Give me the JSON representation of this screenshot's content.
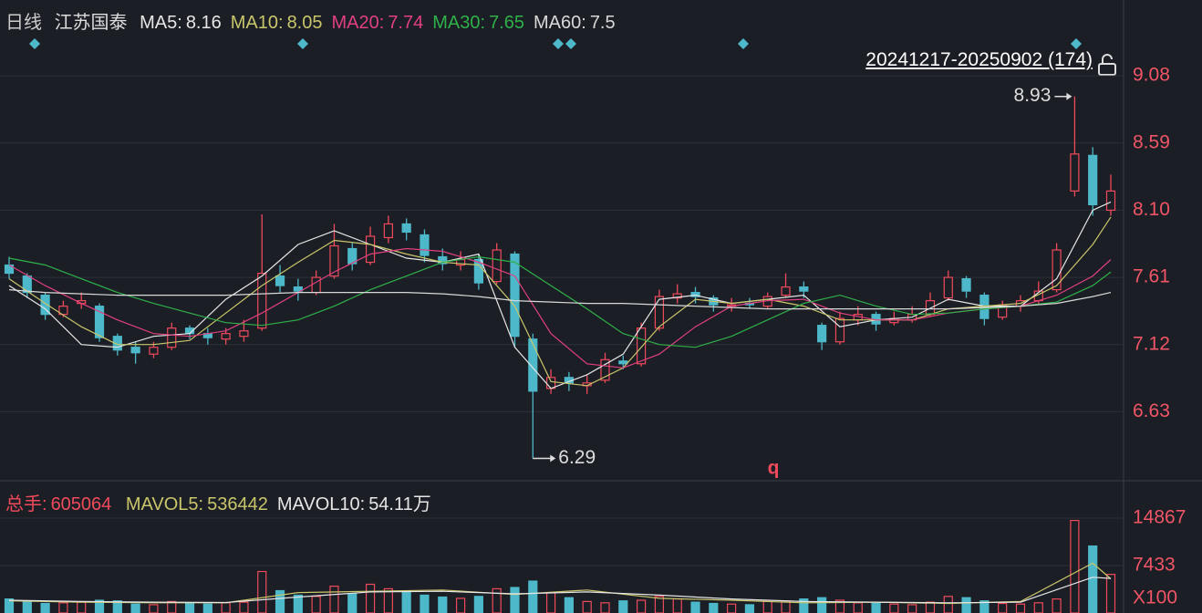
{
  "header": {
    "period": "日线",
    "name": "江苏国泰",
    "range_label": "20241217-20250902 (174)",
    "signal_label": "q"
  },
  "chart_data": [
    {
      "type": "candlestick",
      "up_color": "#ef4a5c",
      "down_color": "#4cb8c9",
      "grid": true,
      "ylim": [
        6.14,
        9.6
      ],
      "yticks": [
        9.08,
        8.59,
        {
          "value": 8.1,
          "label": "8.10"
        },
        7.61,
        7.12,
        6.63
      ],
      "high_marker": 8.93,
      "low_marker": 6.29,
      "ohlc": [
        [
          7.7,
          7.76,
          7.6,
          7.64
        ],
        [
          7.62,
          7.64,
          7.46,
          7.5
        ],
        [
          7.48,
          7.5,
          7.3,
          7.34
        ],
        [
          7.34,
          7.44,
          7.32,
          7.4
        ],
        [
          7.42,
          7.5,
          7.38,
          7.44
        ],
        [
          7.4,
          7.42,
          7.14,
          7.17
        ],
        [
          7.18,
          7.2,
          7.04,
          7.08
        ],
        [
          7.1,
          7.14,
          6.98,
          7.06
        ],
        [
          7.05,
          7.14,
          7.02,
          7.1
        ],
        [
          7.1,
          7.28,
          7.08,
          7.24
        ],
        [
          7.24,
          7.26,
          7.16,
          7.2
        ],
        [
          7.2,
          7.24,
          7.12,
          7.17
        ],
        [
          7.16,
          7.24,
          7.12,
          7.2
        ],
        [
          7.18,
          7.3,
          7.14,
          7.22
        ],
        [
          7.24,
          8.07,
          7.22,
          7.64
        ],
        [
          7.62,
          7.7,
          7.5,
          7.55
        ],
        [
          7.54,
          7.6,
          7.44,
          7.51
        ],
        [
          7.5,
          7.66,
          7.48,
          7.61
        ],
        [
          7.62,
          8.0,
          7.6,
          7.84
        ],
        [
          7.82,
          7.86,
          7.66,
          7.71
        ],
        [
          7.72,
          7.98,
          7.7,
          7.91
        ],
        [
          7.9,
          8.06,
          7.86,
          8.0
        ],
        [
          8.0,
          8.04,
          7.88,
          7.94
        ],
        [
          7.92,
          7.96,
          7.72,
          7.77
        ],
        [
          7.76,
          7.82,
          7.66,
          7.71
        ],
        [
          7.7,
          7.8,
          7.66,
          7.74
        ],
        [
          7.74,
          7.78,
          7.52,
          7.57
        ],
        [
          7.58,
          7.86,
          7.56,
          7.81
        ],
        [
          7.78,
          7.8,
          7.1,
          7.18
        ],
        [
          7.16,
          7.2,
          6.29,
          6.78
        ],
        [
          6.8,
          6.94,
          6.76,
          6.88
        ],
        [
          6.88,
          6.92,
          6.78,
          6.84
        ],
        [
          6.82,
          6.9,
          6.76,
          6.84
        ],
        [
          6.86,
          7.06,
          6.84,
          7.01
        ],
        [
          7.0,
          7.04,
          6.94,
          6.98
        ],
        [
          6.98,
          7.28,
          6.96,
          7.24
        ],
        [
          7.24,
          7.52,
          7.22,
          7.47
        ],
        [
          7.46,
          7.56,
          7.42,
          7.49
        ],
        [
          7.5,
          7.54,
          7.42,
          7.47
        ],
        [
          7.46,
          7.48,
          7.36,
          7.41
        ],
        [
          7.4,
          7.46,
          7.36,
          7.41
        ],
        [
          7.42,
          7.46,
          7.38,
          7.41
        ],
        [
          7.4,
          7.5,
          7.38,
          7.47
        ],
        [
          7.48,
          7.64,
          7.46,
          7.54
        ],
        [
          7.54,
          7.58,
          7.46,
          7.51
        ],
        [
          7.26,
          7.28,
          7.08,
          7.14
        ],
        [
          7.14,
          7.36,
          7.12,
          7.31
        ],
        [
          7.3,
          7.4,
          7.26,
          7.34
        ],
        [
          7.34,
          7.36,
          7.22,
          7.27
        ],
        [
          7.28,
          7.36,
          7.26,
          7.31
        ],
        [
          7.3,
          7.4,
          7.28,
          7.34
        ],
        [
          7.34,
          7.5,
          7.32,
          7.44
        ],
        [
          7.46,
          7.66,
          7.44,
          7.61
        ],
        [
          7.6,
          7.62,
          7.46,
          7.51
        ],
        [
          7.48,
          7.5,
          7.26,
          7.31
        ],
        [
          7.32,
          7.44,
          7.3,
          7.41
        ],
        [
          7.4,
          7.48,
          7.36,
          7.44
        ],
        [
          7.44,
          7.58,
          7.42,
          7.51
        ],
        [
          7.52,
          7.86,
          7.5,
          7.81
        ],
        [
          8.24,
          8.93,
          8.2,
          8.51
        ],
        [
          8.5,
          8.56,
          8.06,
          8.14
        ],
        [
          8.1,
          8.36,
          8.06,
          8.24
        ]
      ],
      "ma_x": [
        0,
        2,
        4,
        6,
        8,
        10,
        12,
        14,
        16,
        18,
        20,
        22,
        24,
        26,
        28,
        30,
        32,
        34,
        36,
        38,
        40,
        42,
        44,
        46,
        48,
        50,
        52,
        54,
        56,
        58,
        60,
        61
      ],
      "series": [
        {
          "name": "MA5:",
          "color": "#e6e6e6",
          "current": 8.16,
          "values": [
            7.55,
            7.38,
            7.12,
            7.1,
            7.18,
            7.2,
            7.45,
            7.62,
            7.85,
            7.95,
            7.85,
            7.75,
            7.72,
            7.78,
            7.1,
            6.8,
            6.9,
            7.05,
            7.45,
            7.48,
            7.42,
            7.45,
            7.48,
            7.25,
            7.3,
            7.32,
            7.45,
            7.4,
            7.4,
            7.6,
            8.1,
            8.16
          ]
        },
        {
          "name": "MA10:",
          "color": "#c9c56b",
          "current": 8.05,
          "values": [
            7.6,
            7.42,
            7.25,
            7.12,
            7.12,
            7.15,
            7.35,
            7.55,
            7.72,
            7.88,
            7.85,
            7.78,
            7.72,
            7.7,
            7.4,
            6.85,
            6.82,
            6.95,
            7.25,
            7.45,
            7.42,
            7.45,
            7.4,
            7.3,
            7.3,
            7.3,
            7.38,
            7.4,
            7.42,
            7.55,
            7.85,
            8.05
          ]
        },
        {
          "name": "MA20:",
          "color": "#e0407f",
          "current": 7.74,
          "values": [
            7.7,
            7.55,
            7.42,
            7.3,
            7.2,
            7.18,
            7.22,
            7.35,
            7.5,
            7.65,
            7.78,
            7.82,
            7.8,
            7.72,
            7.62,
            7.2,
            6.98,
            6.95,
            7.05,
            7.25,
            7.4,
            7.44,
            7.45,
            7.35,
            7.3,
            7.3,
            7.35,
            7.38,
            7.4,
            7.48,
            7.62,
            7.74
          ]
        },
        {
          "name": "MA30:",
          "color": "#2fb04a",
          "current": 7.65,
          "values": [
            7.75,
            7.7,
            7.6,
            7.5,
            7.42,
            7.35,
            7.28,
            7.26,
            7.3,
            7.4,
            7.52,
            7.62,
            7.72,
            7.76,
            7.72,
            7.55,
            7.38,
            7.2,
            7.12,
            7.1,
            7.18,
            7.3,
            7.42,
            7.48,
            7.4,
            7.34,
            7.35,
            7.38,
            7.4,
            7.43,
            7.55,
            7.65
          ]
        },
        {
          "name": "MA60:",
          "color": "#d8d8d8",
          "current": 7.5,
          "values": [
            7.52,
            7.5,
            7.49,
            7.48,
            7.48,
            7.48,
            7.48,
            7.49,
            7.5,
            7.5,
            7.5,
            7.5,
            7.49,
            7.47,
            7.44,
            7.43,
            7.42,
            7.42,
            7.41,
            7.4,
            7.39,
            7.38,
            7.38,
            7.38,
            7.38,
            7.38,
            7.38,
            7.39,
            7.4,
            7.42,
            7.47,
            7.5
          ]
        }
      ]
    },
    {
      "type": "bar",
      "label": "总手:",
      "current": 605064,
      "ylim": [
        0,
        18870
      ],
      "yticks": [
        14867,
        7433
      ],
      "unit_label": "X100",
      "values": [
        2200,
        1800,
        1500,
        1600,
        1700,
        2000,
        1900,
        1400,
        1300,
        1800,
        1500,
        1400,
        1600,
        1700,
        6500,
        3500,
        2800,
        2600,
        4200,
        3000,
        4500,
        3800,
        3200,
        2800,
        2500,
        2300,
        2600,
        3800,
        4000,
        5000,
        3200,
        2400,
        1800,
        1600,
        1900,
        2000,
        2600,
        2200,
        1700,
        1500,
        1400,
        1300,
        1800,
        1900,
        2200,
        2400,
        2000,
        1600,
        1500,
        1400,
        1300,
        1700,
        2600,
        2400,
        1900,
        1500,
        1400,
        1600,
        2200,
        14500,
        10500,
        6051
      ],
      "ma_x": [
        0,
        4,
        8,
        12,
        16,
        20,
        24,
        28,
        32,
        36,
        40,
        44,
        48,
        52,
        56,
        60,
        61
      ],
      "series": [
        {
          "name": "MAVOL5:",
          "color": "#c9c56b",
          "current": 536442,
          "values": [
            1900,
            1700,
            1600,
            1600,
            3200,
            3400,
            3600,
            2900,
            3600,
            2300,
            2000,
            1600,
            1700,
            1500,
            1800,
            7800,
            5364
          ]
        },
        {
          "name": "MAVOL10:",
          "color": "#e6e6e6",
          "current": {
            "value": 541100,
            "label": "54.11万"
          },
          "values": [
            2000,
            1800,
            1700,
            1650,
            2500,
            3300,
            3400,
            3000,
            3300,
            2800,
            2200,
            1800,
            1700,
            1600,
            1700,
            5600,
            5411
          ]
        }
      ]
    }
  ]
}
